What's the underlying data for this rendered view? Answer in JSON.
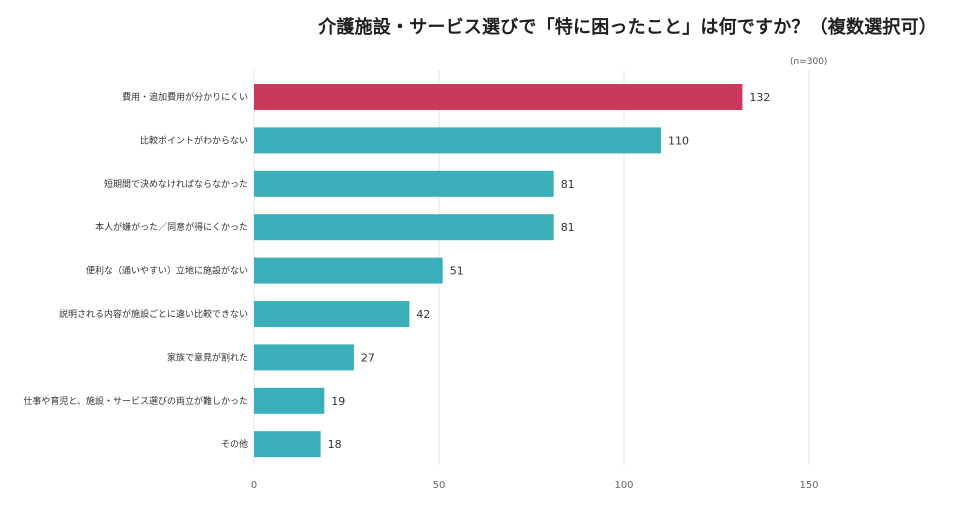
{
  "chart_data": {
    "type": "bar",
    "orientation": "horizontal",
    "title": "介護施設・サービス選びで「特に困ったこと」は何ですか？（複数選択可）",
    "note": "(n=300)",
    "categories": [
      "費用・追加費用が分かりにくい",
      "比較ポイントがわからない",
      "短期間で決めなければならなかった",
      "本人が嫌がった／同意が得にくかった",
      "便利な（通いやすい）立地に施設がない",
      "説明される内容が施設ごとに違い比較できない",
      "家族で意見が割れた",
      "仕事や育児と、施設・サービス選びの両立が難しかった",
      "その他"
    ],
    "values": [
      132,
      110,
      81,
      81,
      51,
      42,
      27,
      19,
      18
    ],
    "xlim": [
      0,
      150
    ],
    "x_ticks": [
      "0",
      "50",
      "100",
      "150"
    ],
    "grid": "vertical",
    "colors": {
      "highlight": "#c9395a",
      "default": "#3aafb9",
      "grid": "#e6e6e6"
    },
    "highlight_index": 0
  }
}
